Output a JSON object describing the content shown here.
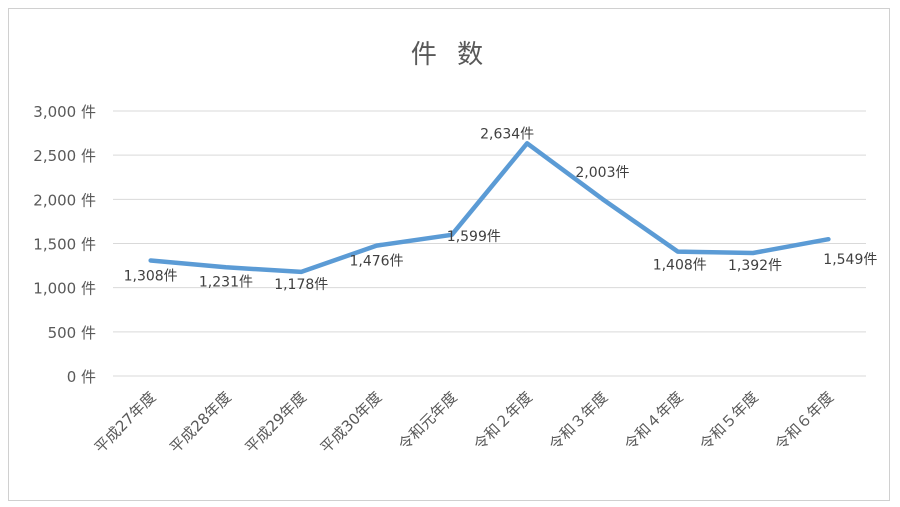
{
  "chart_data": {
    "type": "line",
    "title": "件 数",
    "categories": [
      "平成27年度",
      "平成28年度",
      "平成29年度",
      "平成30年度",
      "令和元年度",
      "令和２年度",
      "令和３年度",
      "令和４年度",
      "令和５年度",
      "令和６年度"
    ],
    "series": [
      {
        "values": [
          1308,
          1231,
          1178,
          1476,
          1599,
          2634,
          2003,
          1408,
          1392,
          1549
        ]
      }
    ],
    "data_labels": [
      "1,308件",
      "1,231件",
      "1,178件",
      "1,476件",
      "1,599件",
      "2,634件",
      "2,003件",
      "1,408件",
      "1,392件",
      "1,549件"
    ],
    "y_ticks": [
      {
        "value": 0,
        "label": "0 件"
      },
      {
        "value": 500,
        "label": "500 件"
      },
      {
        "value": 1000,
        "label": "1,000 件"
      },
      {
        "value": 1500,
        "label": "1,500 件"
      },
      {
        "value": 2000,
        "label": "2,000 件"
      },
      {
        "value": 2500,
        "label": "2,500 件"
      },
      {
        "value": 3000,
        "label": "3,000 件"
      }
    ],
    "ylim": [
      0,
      3000
    ],
    "grid": true,
    "legend": "none",
    "color": "#5b9bd5"
  }
}
